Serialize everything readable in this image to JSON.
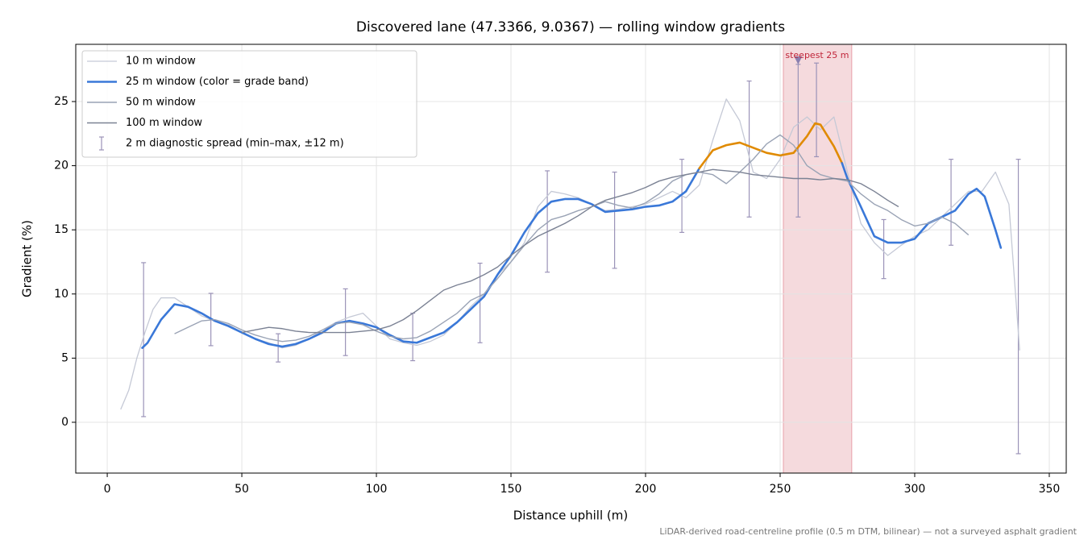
{
  "chart_data": {
    "type": "line",
    "title": "Discovered lane (47.3366, 9.0367) — rolling window gradients",
    "xlabel": "Distance uphill (m)",
    "ylabel": "Gradient (%)",
    "footnote": "LiDAR-derived road-centreline profile (0.5 m DTM, bilinear) — not a surveyed asphalt gradient",
    "xlim": [
      -11.7,
      356.3
    ],
    "ylim": [
      -3.96,
      29.46
    ],
    "xticks": [
      0,
      50,
      100,
      150,
      200,
      250,
      300,
      350
    ],
    "yticks": [
      0,
      5,
      10,
      15,
      20,
      25
    ],
    "grid": true,
    "legend": "upper left",
    "grade_band_threshold": 20,
    "grade_band_color": "#e08a00",
    "series": [
      {
        "name": "10 m window",
        "color": "#c5c9d6",
        "width": 1.3,
        "x": [
          5,
          8,
          11,
          14,
          17,
          20,
          25,
          30,
          35,
          40,
          45,
          50,
          55,
          60,
          65,
          70,
          75,
          80,
          85,
          90,
          95,
          100,
          105,
          110,
          115,
          120,
          125,
          130,
          135,
          140,
          145,
          150,
          155,
          160,
          165,
          170,
          175,
          180,
          185,
          190,
          195,
          200,
          205,
          210,
          215,
          220,
          225,
          230,
          235,
          240,
          245,
          250,
          255,
          260,
          265,
          270,
          275,
          280,
          285,
          290,
          295,
          300,
          305,
          310,
          315,
          320,
          325,
          330,
          335,
          339
        ],
        "values": [
          1.0,
          2.5,
          5,
          7,
          8.8,
          9.7,
          9.7,
          9.0,
          8.3,
          7.9,
          7.6,
          7.0,
          6.5,
          6.2,
          5.8,
          6.0,
          6.5,
          7.2,
          7.8,
          8.2,
          8.5,
          7.5,
          6.5,
          6.2,
          6.0,
          6.3,
          6.8,
          7.8,
          9.0,
          10.0,
          11.5,
          12.5,
          14.0,
          16.8,
          18.0,
          17.8,
          17.5,
          17.0,
          16.5,
          16.6,
          16.8,
          17.0,
          17.5,
          18.0,
          17.5,
          18.5,
          22.0,
          25.2,
          23.5,
          19.5,
          19.0,
          20.5,
          23.0,
          23.8,
          22.8,
          23.8,
          19.5,
          15.5,
          14.0,
          13.0,
          13.8,
          14.5,
          15.0,
          16.0,
          17.0,
          18.0,
          18.0,
          19.5,
          17.0,
          5.6
        ]
      },
      {
        "name": "25 m window (color = grade band)",
        "color": "#3a78d8",
        "width": 2.6,
        "banded": true,
        "x": [
          13,
          15,
          20,
          25,
          30,
          35,
          40,
          45,
          50,
          55,
          60,
          65,
          70,
          75,
          80,
          85,
          90,
          95,
          100,
          105,
          110,
          115,
          120,
          125,
          130,
          135,
          140,
          145,
          150,
          155,
          160,
          165,
          170,
          175,
          180,
          185,
          190,
          195,
          200,
          205,
          210,
          215,
          220,
          225,
          230,
          235,
          240,
          245,
          250,
          255,
          260,
          263,
          265,
          270,
          273,
          275,
          280,
          285,
          290,
          295,
          300,
          305,
          310,
          315,
          320,
          323,
          326,
          330,
          332
        ],
        "values": [
          5.8,
          6.2,
          8.0,
          9.2,
          9.0,
          8.5,
          7.9,
          7.5,
          7.0,
          6.5,
          6.1,
          5.9,
          6.1,
          6.5,
          7.0,
          7.7,
          7.9,
          7.7,
          7.4,
          6.8,
          6.3,
          6.2,
          6.6,
          7.0,
          7.8,
          8.8,
          9.8,
          11.5,
          13.0,
          14.8,
          16.3,
          17.2,
          17.4,
          17.4,
          17.0,
          16.4,
          16.5,
          16.6,
          16.8,
          16.9,
          17.2,
          18.0,
          19.8,
          21.2,
          21.6,
          21.8,
          21.4,
          21.0,
          20.8,
          21.0,
          22.3,
          23.3,
          23.2,
          21.5,
          20.2,
          19.0,
          16.8,
          14.5,
          14.0,
          14.0,
          14.3,
          15.5,
          16.0,
          16.5,
          17.8,
          18.2,
          17.6,
          15.0,
          13.6
        ]
      },
      {
        "name": "50 m window",
        "color": "#9aa3b5",
        "width": 1.4,
        "x": [
          25,
          30,
          35,
          40,
          45,
          50,
          55,
          60,
          65,
          70,
          75,
          80,
          85,
          90,
          95,
          100,
          105,
          110,
          115,
          120,
          125,
          130,
          135,
          140,
          145,
          150,
          155,
          160,
          165,
          170,
          175,
          180,
          185,
          190,
          195,
          200,
          205,
          210,
          215,
          220,
          225,
          230,
          235,
          240,
          245,
          250,
          255,
          260,
          265,
          270,
          275,
          280,
          285,
          290,
          295,
          300,
          305,
          310,
          315,
          320
        ],
        "values": [
          6.9,
          7.4,
          7.9,
          8.0,
          7.7,
          7.2,
          6.8,
          6.5,
          6.3,
          6.4,
          6.7,
          7.2,
          7.7,
          7.8,
          7.6,
          7.1,
          6.7,
          6.5,
          6.6,
          7.1,
          7.8,
          8.5,
          9.5,
          10.0,
          11.2,
          12.5,
          13.8,
          15.0,
          15.8,
          16.1,
          16.5,
          16.8,
          17.2,
          16.9,
          16.7,
          17.1,
          17.8,
          18.8,
          19.3,
          19.5,
          19.3,
          18.6,
          19.5,
          20.5,
          21.7,
          22.4,
          21.6,
          20.0,
          19.3,
          19.0,
          18.8,
          17.8,
          17.0,
          16.5,
          15.8,
          15.3,
          15.5,
          16.0,
          15.5,
          14.6
        ]
      },
      {
        "name": "100 m window",
        "color": "#7b8294",
        "width": 1.4,
        "x": [
          50,
          55,
          60,
          65,
          70,
          75,
          80,
          85,
          90,
          95,
          100,
          105,
          110,
          115,
          120,
          125,
          130,
          135,
          140,
          145,
          150,
          155,
          160,
          165,
          170,
          175,
          180,
          185,
          190,
          195,
          200,
          205,
          210,
          215,
          220,
          225,
          230,
          235,
          240,
          245,
          250,
          255,
          260,
          265,
          270,
          275,
          280,
          285,
          290,
          294
        ],
        "values": [
          7.0,
          7.2,
          7.4,
          7.3,
          7.1,
          7.0,
          7.0,
          7.0,
          7.0,
          7.1,
          7.2,
          7.5,
          8.0,
          8.7,
          9.5,
          10.3,
          10.7,
          11.0,
          11.5,
          12.1,
          13.0,
          13.8,
          14.5,
          15.0,
          15.5,
          16.1,
          16.8,
          17.3,
          17.6,
          17.9,
          18.3,
          18.8,
          19.1,
          19.3,
          19.5,
          19.7,
          19.6,
          19.5,
          19.3,
          19.2,
          19.1,
          19.0,
          19.0,
          18.9,
          19.0,
          18.9,
          18.6,
          18.0,
          17.3,
          16.8
        ]
      }
    ],
    "errorbars": {
      "name": "2 m diagnostic spread (min–max, ±12 m)",
      "color": "#9b93b8",
      "x": [
        13.5,
        38.5,
        63.5,
        88.5,
        113.5,
        138.5,
        163.5,
        188.5,
        213.5,
        238.5,
        256.7,
        263.5,
        288.5,
        313.5,
        338.5
      ],
      "low": [
        0.44,
        5.97,
        4.7,
        5.2,
        4.8,
        6.2,
        11.7,
        12.0,
        14.8,
        16.0,
        16.0,
        20.7,
        11.2,
        13.8,
        -2.45
      ],
      "high": [
        12.44,
        10.05,
        6.9,
        10.4,
        8.5,
        12.4,
        19.6,
        19.5,
        20.5,
        26.6,
        27.9,
        28.0,
        15.8,
        20.5,
        20.5
      ]
    },
    "highlight": {
      "x0": 251.2,
      "x1": 276.6,
      "color": "#f5dadd"
    },
    "annotation": {
      "text": "steepest 25 m",
      "x": 256.7,
      "y": 28.2,
      "color": "#c0253a"
    }
  }
}
